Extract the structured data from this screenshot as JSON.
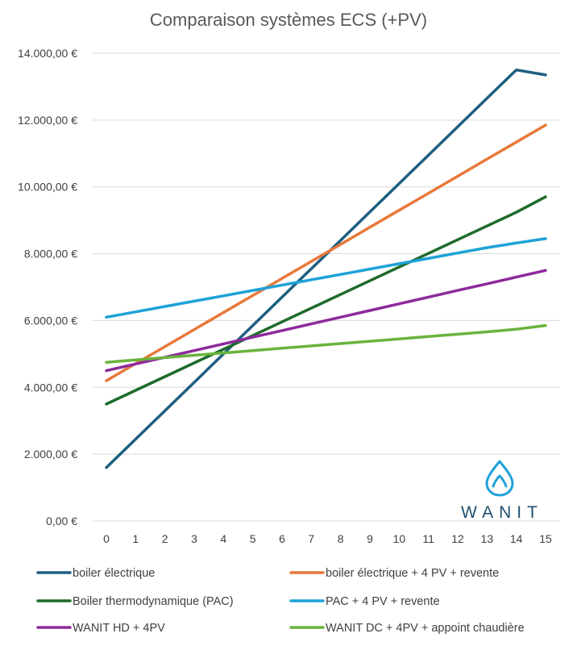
{
  "chart_data": {
    "type": "line",
    "title": "Comparaison systèmes ECS (+PV)",
    "xlabel": "",
    "ylabel": "",
    "x": [
      0,
      1,
      2,
      3,
      4,
      5,
      6,
      7,
      8,
      9,
      10,
      11,
      12,
      13,
      14,
      15
    ],
    "x_tick_labels": [
      "0",
      "1",
      "2",
      "3",
      "4",
      "5",
      "6",
      "7",
      "8",
      "9",
      "10",
      "11",
      "12",
      "13",
      "14",
      "15"
    ],
    "ylim": [
      0,
      14000
    ],
    "y_ticks": [
      0,
      2000,
      4000,
      6000,
      8000,
      10000,
      12000,
      14000
    ],
    "y_tick_labels": [
      "0,00 €",
      "2.000,00 €",
      "4.000,00 €",
      "6.000,00 €",
      "8.000,00 €",
      "10.000,00 €",
      "12.000,00 €",
      "14.000,00 €"
    ],
    "grid": true,
    "legend_position": "bottom",
    "series": [
      {
        "name": "boiler électrique",
        "color": "#1f5f80",
        "values": [
          1600,
          2450,
          3300,
          4150,
          5000,
          5850,
          6700,
          7550,
          8400,
          9250,
          10100,
          10950,
          11800,
          12650,
          13500,
          13350
        ]
      },
      {
        "name": "boiler électrique + 4 PV + revente",
        "color": "#e8783a",
        "values": [
          4200,
          4710,
          5220,
          5730,
          6240,
          6750,
          7260,
          7770,
          8280,
          8790,
          9300,
          9810,
          10320,
          10830,
          11340,
          11850
        ]
      },
      {
        "name": "Boiler thermodynamique (PAC)",
        "color": "#1e6b2a",
        "values": [
          3500,
          3910,
          4320,
          4730,
          5140,
          5550,
          5960,
          6370,
          6780,
          7190,
          7600,
          8010,
          8420,
          8830,
          9240,
          9700
        ]
      },
      {
        "name": "PAC + 4 PV + revente",
        "color": "#1ea2d8",
        "values": [
          6100,
          6260,
          6420,
          6580,
          6740,
          6900,
          7060,
          7220,
          7380,
          7540,
          7700,
          7860,
          8020,
          8180,
          8320,
          8450
        ]
      },
      {
        "name": "WANIT HD + 4PV",
        "color": "#8e2a9c",
        "values": [
          4500,
          4700,
          4900,
          5100,
          5300,
          5500,
          5700,
          5900,
          6100,
          6300,
          6500,
          6700,
          6900,
          7100,
          7300,
          7500
        ]
      },
      {
        "name": "WANIT DC + 4PV + appoint chaudière",
        "color": "#6ab33d",
        "values": [
          4750,
          4820,
          4890,
          4960,
          5030,
          5100,
          5170,
          5240,
          5310,
          5380,
          5450,
          5520,
          5590,
          5660,
          5740,
          5850
        ]
      }
    ]
  },
  "logo": {
    "text": "WANIT",
    "color": "#1f4f6e",
    "icon_color": "#1ea2d8",
    "icon": "water-drop-icon"
  }
}
